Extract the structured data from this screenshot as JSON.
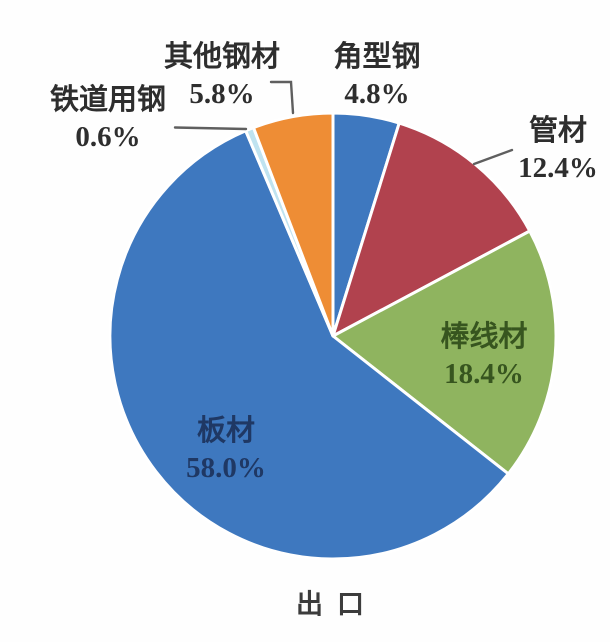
{
  "chart_data": {
    "type": "pie",
    "title": "出口",
    "start_angle_deg": 0,
    "direction": "clockwise",
    "slice_border_color": "#ffffff",
    "leader_line_color": "#5f5f5f",
    "slices": [
      {
        "key": "angle-steel",
        "name": "角型钢",
        "value": 4.8,
        "pct_label": "4.8%",
        "color": "#3e78bf",
        "label_color": "#2e2e2e",
        "label_pos": "outside"
      },
      {
        "key": "pipe",
        "name": "管材",
        "value": 12.4,
        "pct_label": "12.4%",
        "color": "#b1424e",
        "label_color": "#2e2e2e",
        "label_pos": "outside"
      },
      {
        "key": "bar-wire",
        "name": "棒线材",
        "value": 18.4,
        "pct_label": "18.4%",
        "color": "#8fb45f",
        "label_color": "#37551f",
        "label_pos": "inside"
      },
      {
        "key": "plate",
        "name": "板材",
        "value": 58.0,
        "pct_label": "58.0%",
        "color": "#3e78bf",
        "label_color": "#1f3864",
        "label_pos": "inside"
      },
      {
        "key": "railway-steel",
        "name": "铁道用钢",
        "value": 0.6,
        "pct_label": "0.6%",
        "color": "#bfe3f0",
        "label_color": "#2e2e2e",
        "label_pos": "outside"
      },
      {
        "key": "other-steel",
        "name": "其他钢材",
        "value": 5.8,
        "pct_label": "5.8%",
        "color": "#ee8d35",
        "label_color": "#2e2e2e",
        "label_pos": "outside"
      }
    ]
  }
}
